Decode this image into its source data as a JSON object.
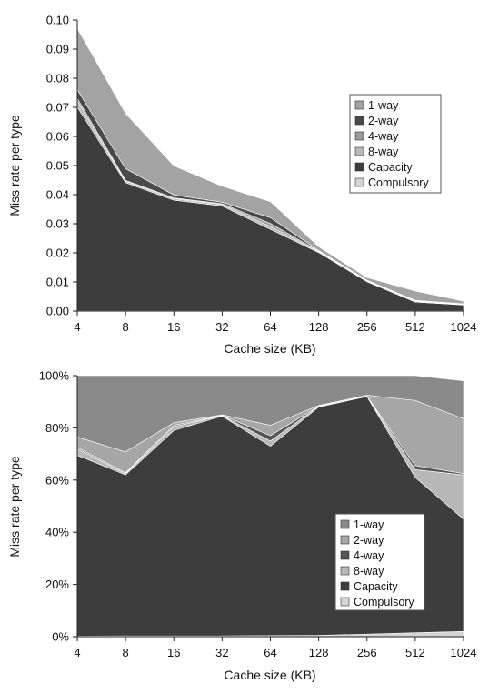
{
  "chart_data": [
    {
      "type": "area",
      "stacked": true,
      "title": "",
      "xlabel": "Cache size (KB)",
      "ylabel": "Miss rate per type",
      "categories": [
        "4",
        "8",
        "16",
        "32",
        "64",
        "128",
        "256",
        "512",
        "1024"
      ],
      "ylim": [
        0,
        0.1
      ],
      "yticks": [
        "0.00",
        "0.01",
        "0.02",
        "0.03",
        "0.04",
        "0.05",
        "0.06",
        "0.07",
        "0.08",
        "0.09",
        "0.10"
      ],
      "legend_position": "right",
      "series": [
        {
          "name": "Compulsory",
          "color": "#d4d4d4",
          "values": [
            0.0001,
            0.0001,
            0.0001,
            0.0001,
            0.0001,
            0.0001,
            0.0001,
            0.0001,
            0.0001
          ]
        },
        {
          "name": "Capacity",
          "color": "#3d3d3d",
          "values": [
            0.07,
            0.044,
            0.038,
            0.036,
            0.028,
            0.02,
            0.01,
            0.003,
            0.002
          ]
        },
        {
          "name": "8-way",
          "color": "#b8b8b8",
          "values": [
            0.002,
            0.0005,
            0.0005,
            0.0005,
            0.001,
            0.0003,
            0.0002,
            0.0003,
            0.0001
          ]
        },
        {
          "name": "4-way",
          "color": "#999999",
          "values": [
            0.001,
            0.0003,
            0.0003,
            0.0003,
            0.001,
            0.0002,
            0.0001,
            0.0001,
            0.0001
          ]
        },
        {
          "name": "2-way",
          "color": "#4a4a4a",
          "values": [
            0.003,
            0.004,
            0.001,
            0.0005,
            0.002,
            0.0002,
            0.0002,
            0.0002,
            0.0002
          ]
        },
        {
          "name": "1-way",
          "color": "#a3a3a3",
          "values": [
            0.021,
            0.019,
            0.01,
            0.0055,
            0.0055,
            0.0013,
            0.0009,
            0.0032,
            0.0009
          ]
        }
      ]
    },
    {
      "type": "area",
      "stacked": true,
      "title": "",
      "xlabel": "Cache size (KB)",
      "ylabel": "Miss rate per type",
      "categories": [
        "4",
        "8",
        "16",
        "32",
        "64",
        "128",
        "256",
        "512",
        "1024"
      ],
      "ylim": [
        0,
        100
      ],
      "yticks": [
        "0%",
        "20%",
        "40%",
        "60%",
        "80%",
        "100%"
      ],
      "legend_position": "bottom-right",
      "series": [
        {
          "name": "Compulsory",
          "color": "#d4d4d4",
          "values": [
            0.2,
            0.3,
            0.3,
            0.3,
            0.4,
            0.5,
            1.0,
            1.5,
            2.0
          ]
        },
        {
          "name": "Capacity",
          "color": "#3d3d3d",
          "values": [
            69.3,
            61.7,
            78.7,
            84.2,
            72.6,
            87.5,
            91.0,
            59.5,
            43.0
          ]
        },
        {
          "name": "8-way",
          "color": "#b8b8b8",
          "values": [
            2.5,
            0.5,
            1.5,
            0.2,
            2.0,
            0.2,
            0.1,
            3.0,
            17.0
          ]
        },
        {
          "name": "4-way",
          "color": "#555555",
          "values": [
            0.5,
            0.3,
            0.5,
            0.1,
            2.0,
            0.1,
            0.1,
            1.5,
            0.5
          ]
        },
        {
          "name": "2-way",
          "color": "#a6a6a6",
          "values": [
            4.0,
            8.0,
            1.0,
            0.2,
            4.0,
            0.3,
            0.3,
            25.0,
            21.0
          ]
        },
        {
          "name": "1-way",
          "color": "#8a8a8a",
          "values": [
            23.5,
            29.2,
            18.0,
            15.0,
            19.0,
            11.4,
            7.5,
            9.5,
            14.5
          ]
        }
      ]
    }
  ],
  "legend": {
    "entries": [
      "1-way",
      "2-way",
      "4-way",
      "8-way",
      "Capacity",
      "Compulsory"
    ]
  }
}
